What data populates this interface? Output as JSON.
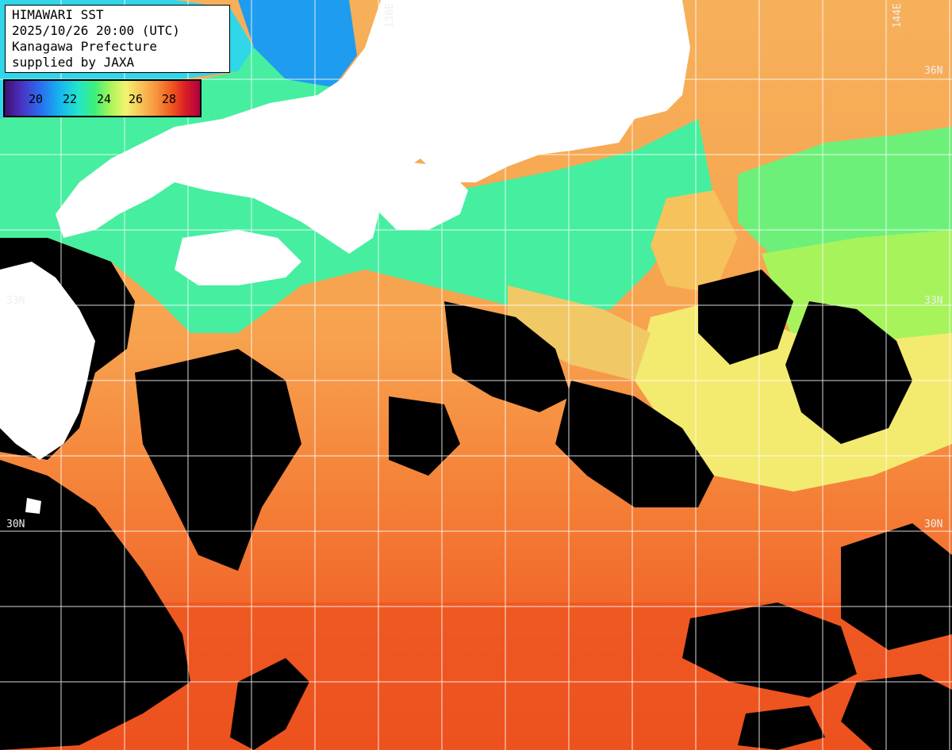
{
  "header": {
    "line1": "HIMAWARI SST",
    "line2": "2025/10/26 20:00 (UTC)",
    "line3": "Kanagawa Prefecture",
    "line4": "supplied by JAXA"
  },
  "legend": {
    "ticks": [
      "20",
      "22",
      "24",
      "26",
      "28"
    ]
  },
  "grid_labels": {
    "lon_136": "136E",
    "lon_144": "144E",
    "lat_36_right": "36N",
    "lat_33_left": "33N",
    "lat_33_right": "33N",
    "lat_30_left": "30N",
    "lat_30_right": "30N"
  },
  "colors": {
    "land": "#ffffff",
    "cloud_mask": "#000000",
    "cool_water": "#4cf09a",
    "mid_water": "#f6d46c",
    "warm_water": "#f6923c",
    "hot_water": "#ef4a1c",
    "grid": "#ffffff"
  }
}
